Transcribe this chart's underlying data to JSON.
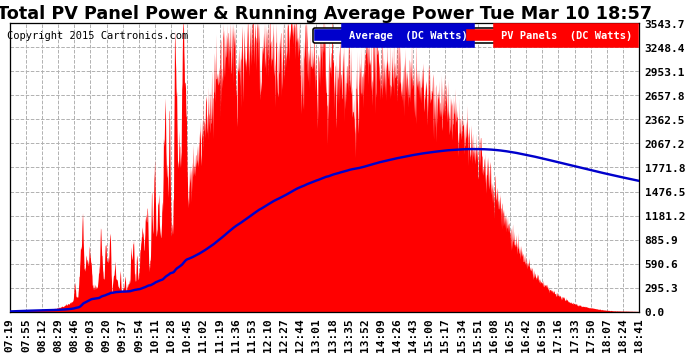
{
  "title": "Total PV Panel Power & Running Average Power Tue Mar 10 18:57",
  "copyright": "Copyright 2015 Cartronics.com",
  "legend_avg": "Average  (DC Watts)",
  "legend_pv": "PV Panels  (DC Watts)",
  "ymax": 3543.7,
  "yticks": [
    0.0,
    295.3,
    590.6,
    885.9,
    1181.2,
    1476.5,
    1771.8,
    2067.2,
    2362.5,
    2657.8,
    2953.1,
    3248.4,
    3543.7
  ],
  "x_labels": [
    "07:19",
    "07:55",
    "08:12",
    "08:29",
    "08:46",
    "09:03",
    "09:20",
    "09:37",
    "09:54",
    "10:11",
    "10:28",
    "10:45",
    "11:02",
    "11:19",
    "11:36",
    "11:53",
    "12:10",
    "12:27",
    "12:44",
    "13:01",
    "13:18",
    "13:35",
    "13:52",
    "14:09",
    "14:26",
    "14:43",
    "15:00",
    "15:17",
    "15:34",
    "15:51",
    "16:08",
    "16:25",
    "16:42",
    "16:59",
    "17:16",
    "17:33",
    "17:50",
    "18:07",
    "18:24",
    "18:41"
  ],
  "background_color": "#ffffff",
  "plot_bg_color": "#ffffff",
  "grid_color": "#b0b0b0",
  "pv_color": "#ff0000",
  "avg_color": "#0000cc",
  "title_fontsize": 11,
  "tick_fontsize": 7,
  "n_points": 2000
}
